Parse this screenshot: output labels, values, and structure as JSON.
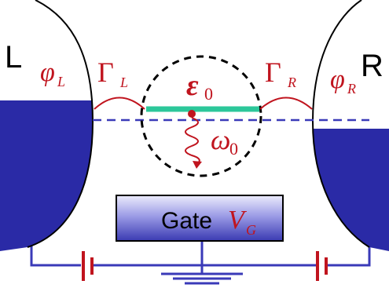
{
  "labels": {
    "left_lead": "L",
    "right_lead": "R",
    "phi_left": "φ",
    "phi_left_sub": "L",
    "phi_right": "φ",
    "phi_right_sub": "R",
    "gamma_left": "Γ",
    "gamma_left_sub": "L",
    "gamma_right": "Γ",
    "gamma_right_sub": "R",
    "epsilon": "ε",
    "epsilon_sub": "0",
    "omega": "ω",
    "omega_sub": "0",
    "gate": "Gate",
    "gate_voltage": "V",
    "gate_voltage_sub": "G"
  },
  "colors": {
    "lead_fill": "#2a2aa6",
    "wire": "#3a3ab8",
    "annotation_red": "#c0141e",
    "level_green": "#2cc79a",
    "gate_fill_light": "#e8e8fb",
    "gate_fill_dark": "#4a4ac0",
    "outline": "#000000"
  }
}
